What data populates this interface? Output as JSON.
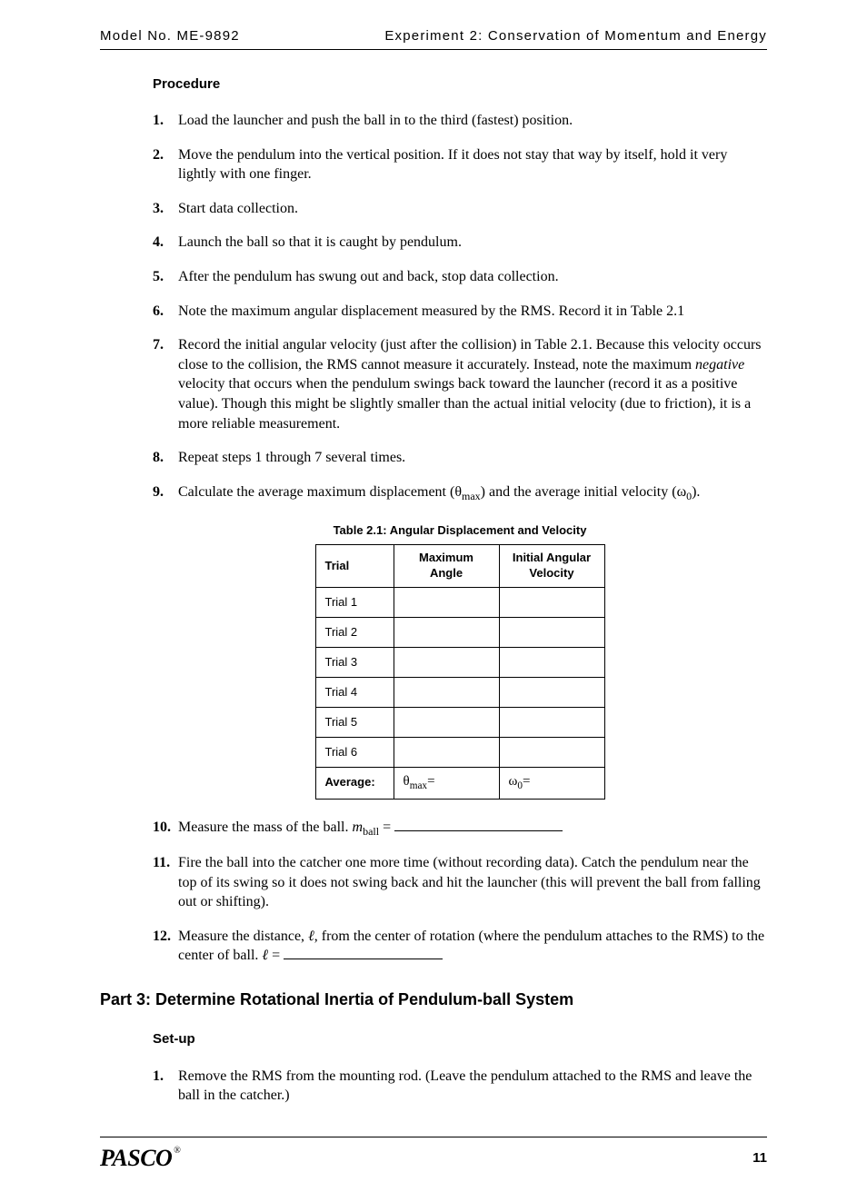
{
  "header": {
    "left": "Model No. ME-9892",
    "right": "Experiment 2: Conservation of Momentum and Energy"
  },
  "procedure": {
    "heading": "Procedure",
    "steps_1_9": [
      {
        "n": "1.",
        "html": "Load the launcher and push the ball in to the third (fastest) position."
      },
      {
        "n": "2.",
        "html": "Move the pendulum into the vertical position. If it does not stay that way by itself, hold it very lightly with one finger."
      },
      {
        "n": "3.",
        "html": "Start data collection."
      },
      {
        "n": "4.",
        "html": "Launch the ball so that it is caught by pendulum."
      },
      {
        "n": "5.",
        "html": "After the pendulum has swung out and back, stop data collection."
      },
      {
        "n": "6.",
        "html": "Note the maximum angular displacement measured by the RMS. Record it in Table 2.1"
      },
      {
        "n": "7.",
        "html": "Record the initial angular velocity (just after the collision) in Table 2.1. Because this velocity occurs close to the collision, the RMS cannot measure it accurately. Instead, note the maximum <span class=\"italic\">negative</span> velocity that occurs when the pendulum swings back toward the launcher (record it as a positive value). Though this might be slightly smaller than the actual initial velocity (due to friction), it is a more reliable measurement."
      },
      {
        "n": "8.",
        "html": "Repeat steps 1 through 7 several times."
      },
      {
        "n": "9.",
        "html": "Calculate the average maximum displacement (θ<span class=\"sub\">max</span>) and the average initial velocity (ω<span class=\"sub\">0</span>)."
      }
    ],
    "steps_10_12": [
      {
        "n": "10.",
        "html": "Measure the mass of the ball. <span class=\"italic\">m</span><span class=\"sub\">ball</span> = <span class=\"blank\"></span>"
      },
      {
        "n": "11.",
        "html": "Fire the ball into the catcher one more time (without recording data). Catch the pendulum near the top of its swing so it does not swing back and hit the launcher (this will prevent the ball from falling out or shifting)."
      },
      {
        "n": "12.",
        "html": "Measure the distance, <span class=\"italic\">ℓ</span>, from the center of rotation (where the pendulum attaches to the RMS) to the center of ball. <span class=\"italic\">ℓ</span> = <span class=\"blank blank-short\"></span>"
      }
    ]
  },
  "table": {
    "caption": "Table 2.1: Angular Displacement and Velocity",
    "columns": [
      "Trial",
      "Maximum Angle",
      "Initial Angular Velocity"
    ],
    "rows": [
      "Trial 1",
      "Trial 2",
      "Trial 3",
      "Trial 4",
      "Trial 5",
      "Trial 6"
    ],
    "average_label": "Average:",
    "avg_angle_html": "θ<span class=\"sub\">max</span>=",
    "avg_vel_html": "ω<span class=\"sub\">0</span>="
  },
  "part3": {
    "heading": "Part 3: Determine Rotational Inertia of Pendulum-ball System",
    "setup_heading": "Set-up",
    "steps": [
      {
        "n": "1.",
        "html": "Remove the RMS from the mounting rod. (Leave the pendulum attached to the RMS and leave the ball in the catcher.)"
      }
    ]
  },
  "footer": {
    "logo": "PASCO",
    "page": "11"
  }
}
